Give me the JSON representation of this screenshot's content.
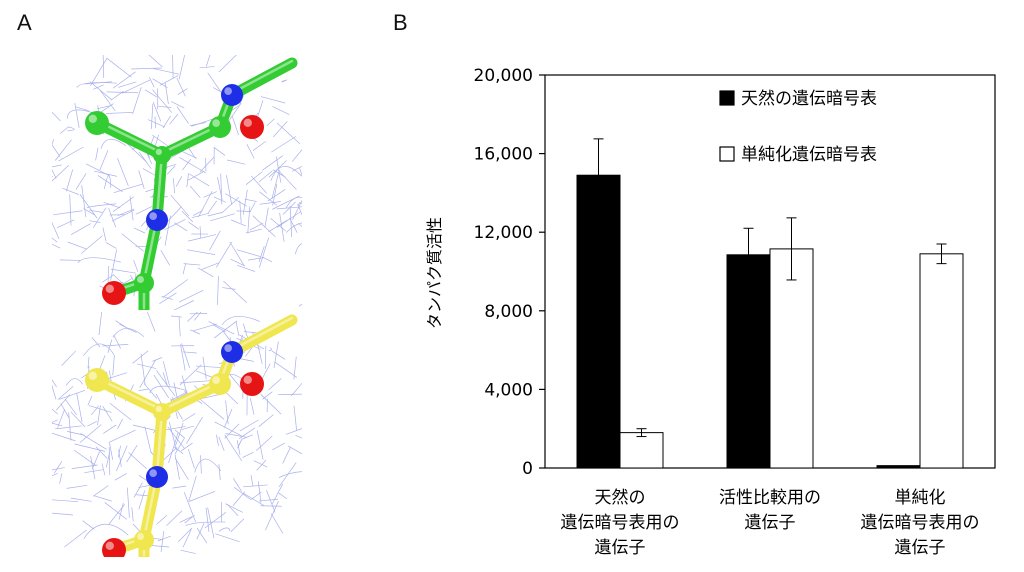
{
  "panels": {
    "a": "A",
    "b": "B"
  },
  "structures": {
    "top": {
      "stick_color": "#33cc33",
      "mesh_color": "#8c96e6",
      "nitrogen_color": "#1e2ee6",
      "oxygen_color": "#e61414"
    },
    "bottom": {
      "stick_color": "#f0e650",
      "mesh_color": "#8c96e6",
      "nitrogen_color": "#1e2ee6",
      "oxygen_color": "#e61414"
    }
  },
  "chart_data": {
    "type": "bar",
    "ylabel": "タンパク質活性",
    "ylim": [
      0,
      20000
    ],
    "yticks": [
      0,
      4000,
      8000,
      12000,
      16000,
      20000
    ],
    "ytick_labels": [
      "0",
      "4,000",
      "8,000",
      "12,000",
      "16,000",
      "20,000"
    ],
    "categories": [
      [
        "天然の",
        "遺伝暗号表用の",
        "遺伝子"
      ],
      [
        "活性比較用の",
        "遺伝子"
      ],
      [
        "単純化",
        "遺伝暗号表用の",
        "遺伝子"
      ]
    ],
    "series": [
      {
        "name": "天然の遺伝暗号表",
        "color": "#000000",
        "values": [
          14900,
          10850,
          120
        ],
        "errors": [
          1850,
          1350,
          0
        ]
      },
      {
        "name": "単純化遺伝暗号表",
        "color": "#ffffff",
        "values": [
          1800,
          11150,
          10900
        ],
        "errors": [
          200,
          1580,
          500
        ]
      }
    ],
    "legend_position": "top-right",
    "grid": false
  }
}
